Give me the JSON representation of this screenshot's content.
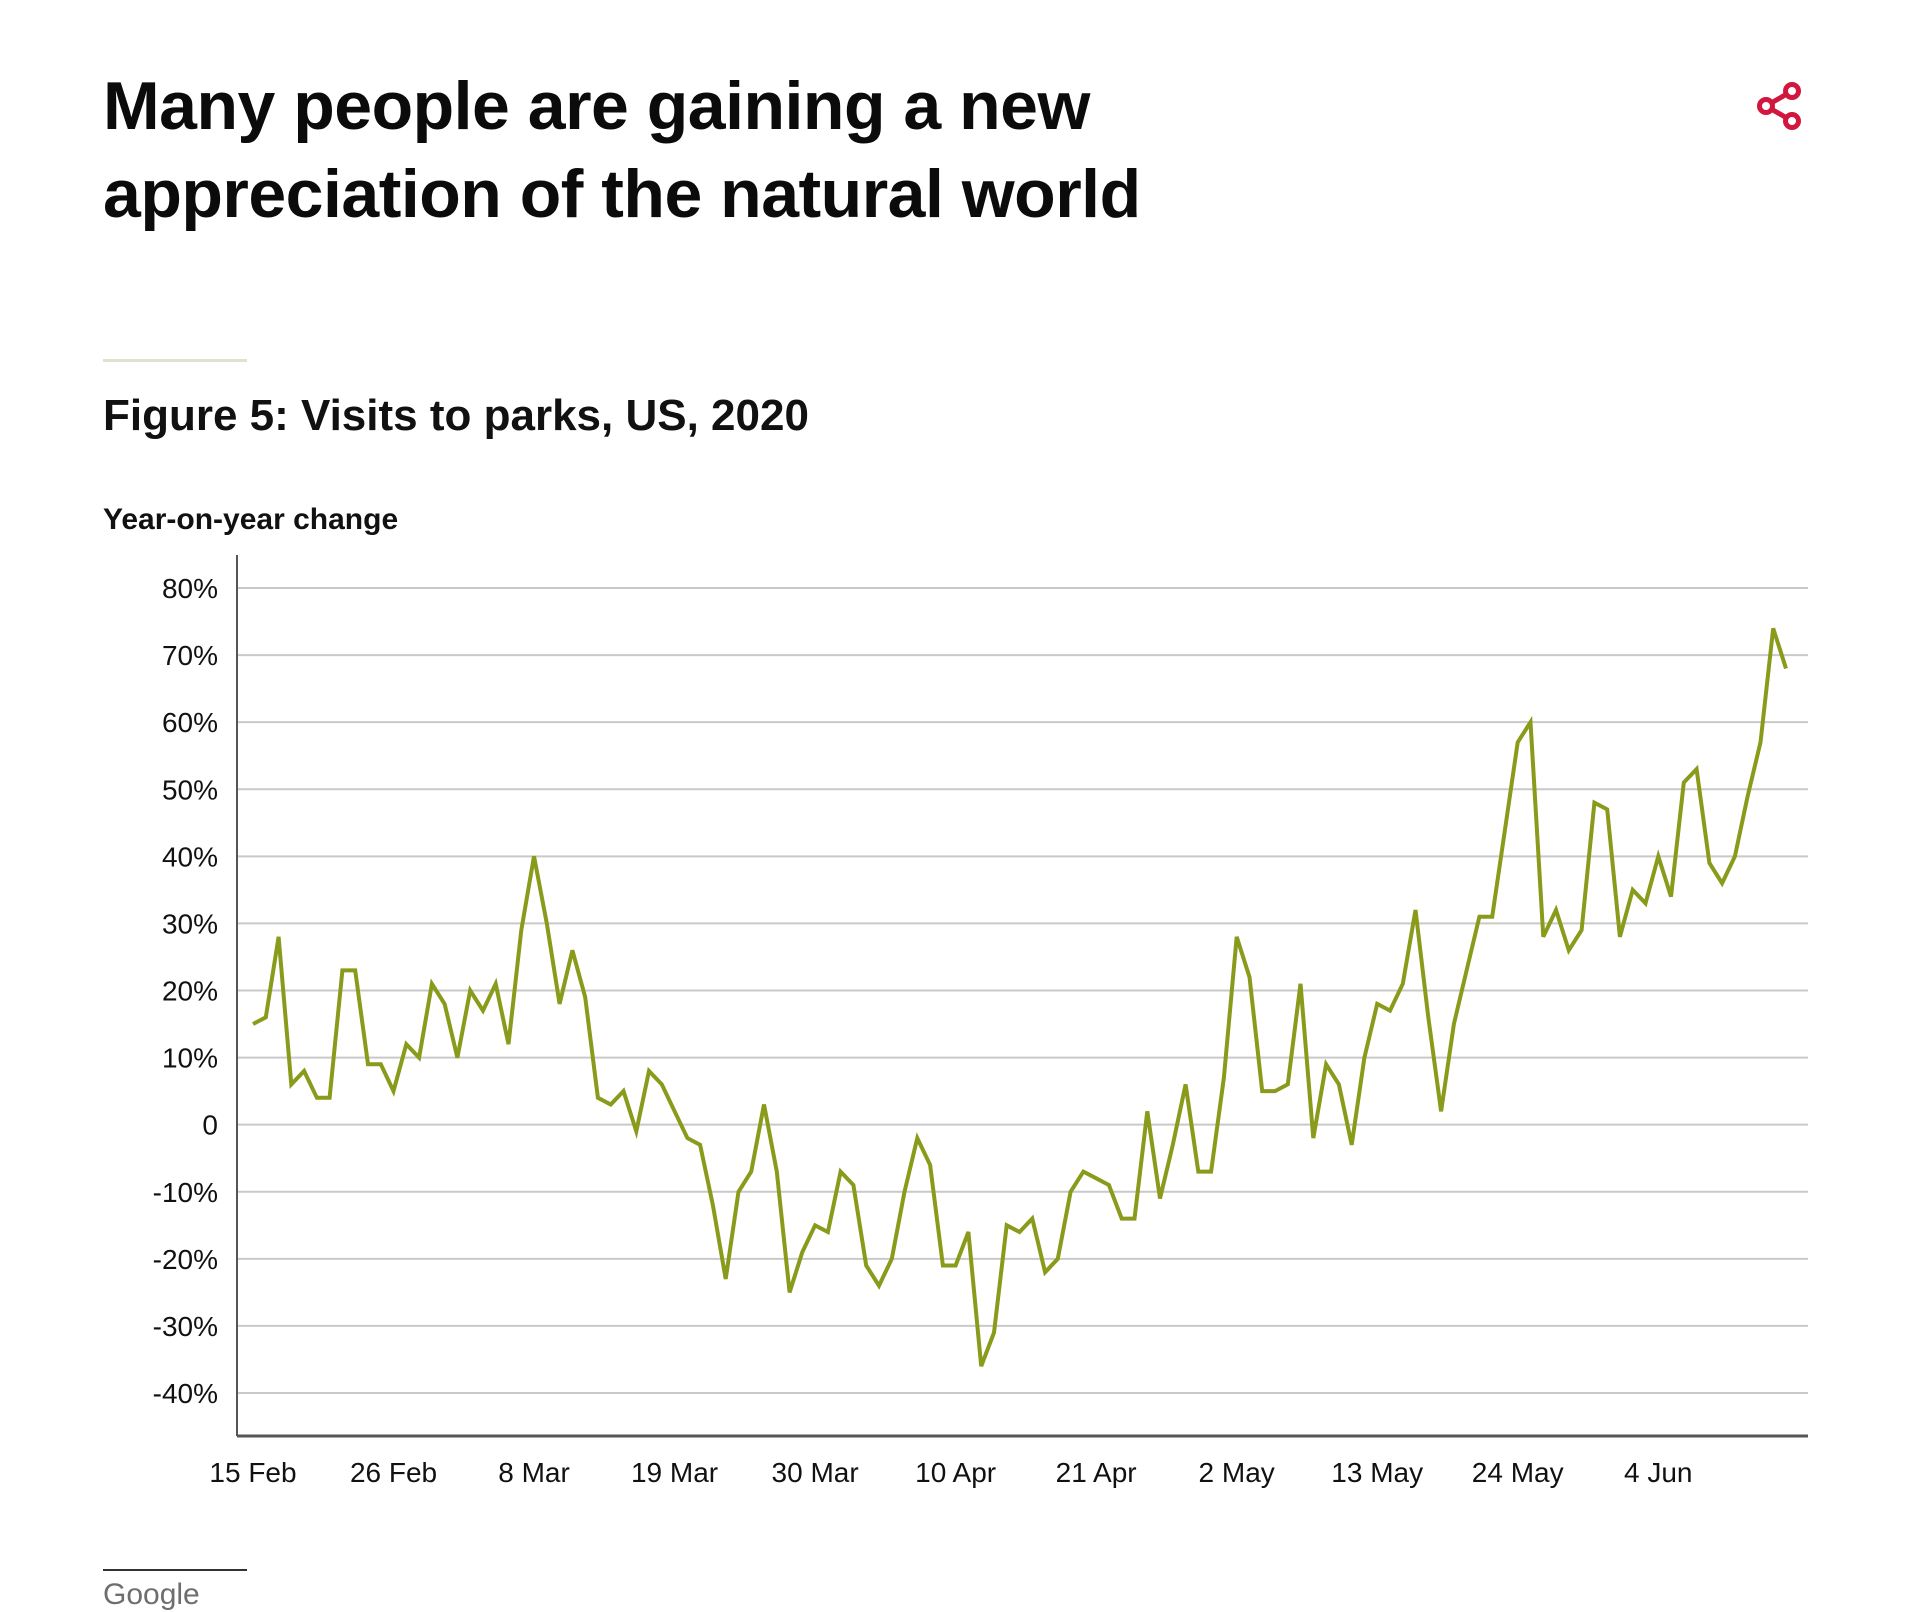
{
  "header": {
    "headline": "Many people are gaining a new appreciation of the natural world",
    "share_icon": "share-icon",
    "accent_color": "#d1173d"
  },
  "figure": {
    "title": "Figure 5: Visits to parks, US, 2020",
    "source": "Google"
  },
  "chart_data": {
    "type": "line",
    "ylabel": "Year-on-year change",
    "xlabel": "",
    "ylim": [
      -45,
      80
    ],
    "y_ticks": [
      80,
      70,
      60,
      50,
      40,
      30,
      20,
      10,
      0,
      -10,
      -20,
      -30,
      -40
    ],
    "y_tick_labels": [
      "80%",
      "70%",
      "60%",
      "50%",
      "40%",
      "30%",
      "20%",
      "10%",
      "0",
      "-10%",
      "-20%",
      "-30%",
      "-40%"
    ],
    "x_tick_labels": [
      "15 Feb",
      "26 Feb",
      "8 Mar",
      "19 Mar",
      "30 Mar",
      "10 Apr",
      "21 Apr",
      "2 May",
      "13 May",
      "24 May",
      "4 Jun"
    ],
    "x_tick_dates": [
      "2020-02-15",
      "2020-02-26",
      "2020-03-08",
      "2020-03-19",
      "2020-03-30",
      "2020-04-10",
      "2020-04-21",
      "2020-05-02",
      "2020-05-13",
      "2020-05-24",
      "2020-06-04"
    ],
    "grid": true,
    "line_color": "#8a9a1b",
    "x": [
      "2020-02-15",
      "2020-02-16",
      "2020-02-17",
      "2020-02-18",
      "2020-02-19",
      "2020-02-20",
      "2020-02-21",
      "2020-02-22",
      "2020-02-23",
      "2020-02-24",
      "2020-02-25",
      "2020-02-26",
      "2020-02-27",
      "2020-02-28",
      "2020-02-29",
      "2020-03-01",
      "2020-03-02",
      "2020-03-03",
      "2020-03-04",
      "2020-03-05",
      "2020-03-06",
      "2020-03-07",
      "2020-03-08",
      "2020-03-09",
      "2020-03-10",
      "2020-03-11",
      "2020-03-12",
      "2020-03-13",
      "2020-03-14",
      "2020-03-15",
      "2020-03-16",
      "2020-03-17",
      "2020-03-18",
      "2020-03-19",
      "2020-03-20",
      "2020-03-21",
      "2020-03-22",
      "2020-03-23",
      "2020-03-24",
      "2020-03-25",
      "2020-03-26",
      "2020-03-27",
      "2020-03-28",
      "2020-03-29",
      "2020-03-30",
      "2020-03-31",
      "2020-04-01",
      "2020-04-02",
      "2020-04-03",
      "2020-04-04",
      "2020-04-05",
      "2020-04-06",
      "2020-04-07",
      "2020-04-08",
      "2020-04-09",
      "2020-04-10",
      "2020-04-11",
      "2020-04-12",
      "2020-04-13",
      "2020-04-14",
      "2020-04-15",
      "2020-04-16",
      "2020-04-17",
      "2020-04-18",
      "2020-04-19",
      "2020-04-20",
      "2020-04-21",
      "2020-04-22",
      "2020-04-23",
      "2020-04-24",
      "2020-04-25",
      "2020-04-26",
      "2020-04-27",
      "2020-04-28",
      "2020-04-29",
      "2020-04-30",
      "2020-05-01",
      "2020-05-02",
      "2020-05-03",
      "2020-05-04",
      "2020-05-05",
      "2020-05-06",
      "2020-05-07",
      "2020-05-08",
      "2020-05-09",
      "2020-05-10",
      "2020-05-11",
      "2020-05-12",
      "2020-05-13",
      "2020-05-14",
      "2020-05-15",
      "2020-05-16",
      "2020-05-17",
      "2020-05-18",
      "2020-05-19",
      "2020-05-20",
      "2020-05-21",
      "2020-05-22",
      "2020-05-23",
      "2020-05-24",
      "2020-05-25",
      "2020-05-26",
      "2020-05-27",
      "2020-05-28",
      "2020-05-29",
      "2020-05-30",
      "2020-05-31",
      "2020-06-01",
      "2020-06-02",
      "2020-06-03",
      "2020-06-04",
      "2020-06-05",
      "2020-06-06",
      "2020-06-07",
      "2020-06-08",
      "2020-06-09",
      "2020-06-10",
      "2020-06-11",
      "2020-06-12",
      "2020-06-13",
      "2020-06-14"
    ],
    "series": [
      {
        "values": [
          15,
          16,
          28,
          6,
          8,
          4,
          4,
          23,
          23,
          9,
          9,
          5,
          12,
          10,
          21,
          18,
          10,
          20,
          17,
          21,
          12,
          29,
          40,
          30,
          18,
          26,
          19,
          4,
          3,
          5,
          -1,
          8,
          6,
          2,
          -2,
          -3,
          -12,
          -23,
          -10,
          -7,
          3,
          -7,
          -25,
          -19,
          -15,
          -16,
          -7,
          -9,
          -21,
          -24,
          -20,
          -10,
          -2,
          -6,
          -21,
          -21,
          -16,
          -36,
          -31,
          -15,
          -16,
          -14,
          -22,
          -20,
          -10,
          -7,
          -8,
          -9,
          -14,
          -14,
          2,
          -11,
          -3,
          6,
          -7,
          -7,
          7,
          28,
          22,
          5,
          5,
          6,
          21,
          -2,
          9,
          6,
          -3,
          10,
          18,
          17,
          21,
          32,
          16,
          2,
          15,
          23,
          31,
          31,
          44,
          57,
          60,
          28,
          32,
          26,
          29,
          48,
          47,
          28,
          35,
          33,
          40,
          34,
          51,
          53,
          39,
          36,
          40,
          49,
          57,
          74,
          68
        ]
      }
    ]
  }
}
